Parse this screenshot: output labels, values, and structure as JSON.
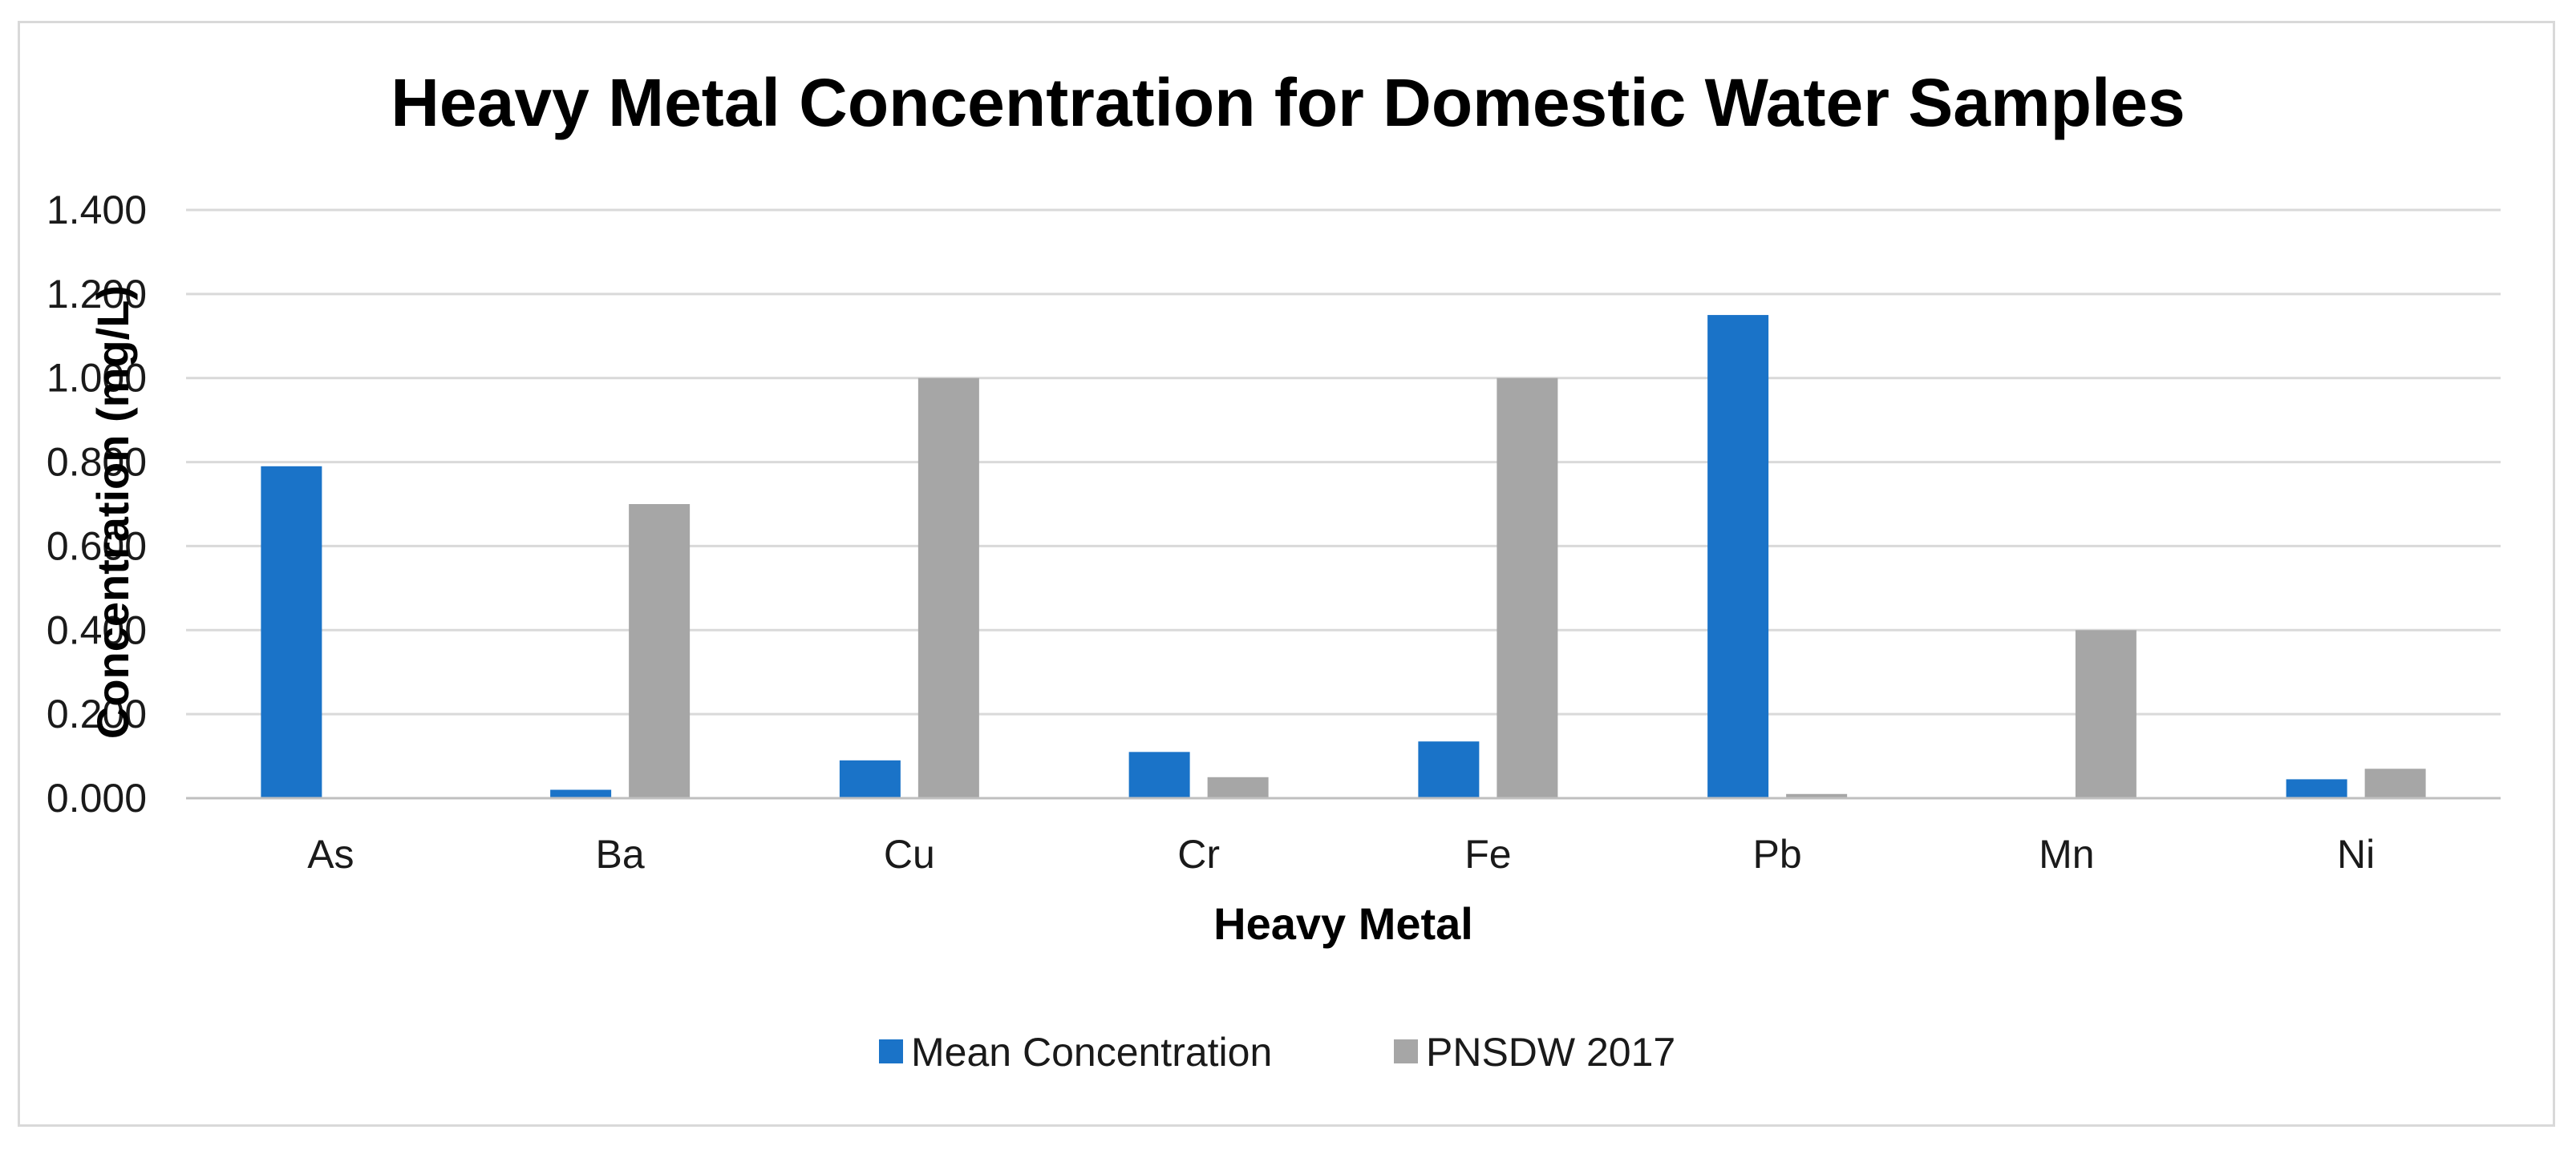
{
  "chart_data": {
    "type": "bar",
    "title": "Heavy Metal Concentration for Domestic Water Samples",
    "xlabel": "Heavy Metal",
    "ylabel": "Concentration (mg/L)",
    "ylim": [
      0,
      1.4
    ],
    "yticks": [
      "0.000",
      "0.200",
      "0.400",
      "0.600",
      "0.800",
      "1.000",
      "1.200",
      "1.400"
    ],
    "ytick_values": [
      0,
      0.2,
      0.4,
      0.6,
      0.8,
      1.0,
      1.2,
      1.4
    ],
    "grid": true,
    "legend_position": "bottom",
    "categories": [
      "As",
      "Ba",
      "Cu",
      "Cr",
      "Fe",
      "Pb",
      "Mn",
      "Ni"
    ],
    "series": [
      {
        "name": "Mean Concentration",
        "color": "#1a73c8",
        "values": [
          0.79,
          0.02,
          0.09,
          0.11,
          0.135,
          1.15,
          0.0,
          0.045
        ]
      },
      {
        "name": "PNSDW 2017",
        "color": "#a6a6a6",
        "values": [
          0.0,
          0.7,
          1.0,
          0.05,
          1.0,
          0.01,
          0.4,
          0.07
        ]
      }
    ]
  }
}
